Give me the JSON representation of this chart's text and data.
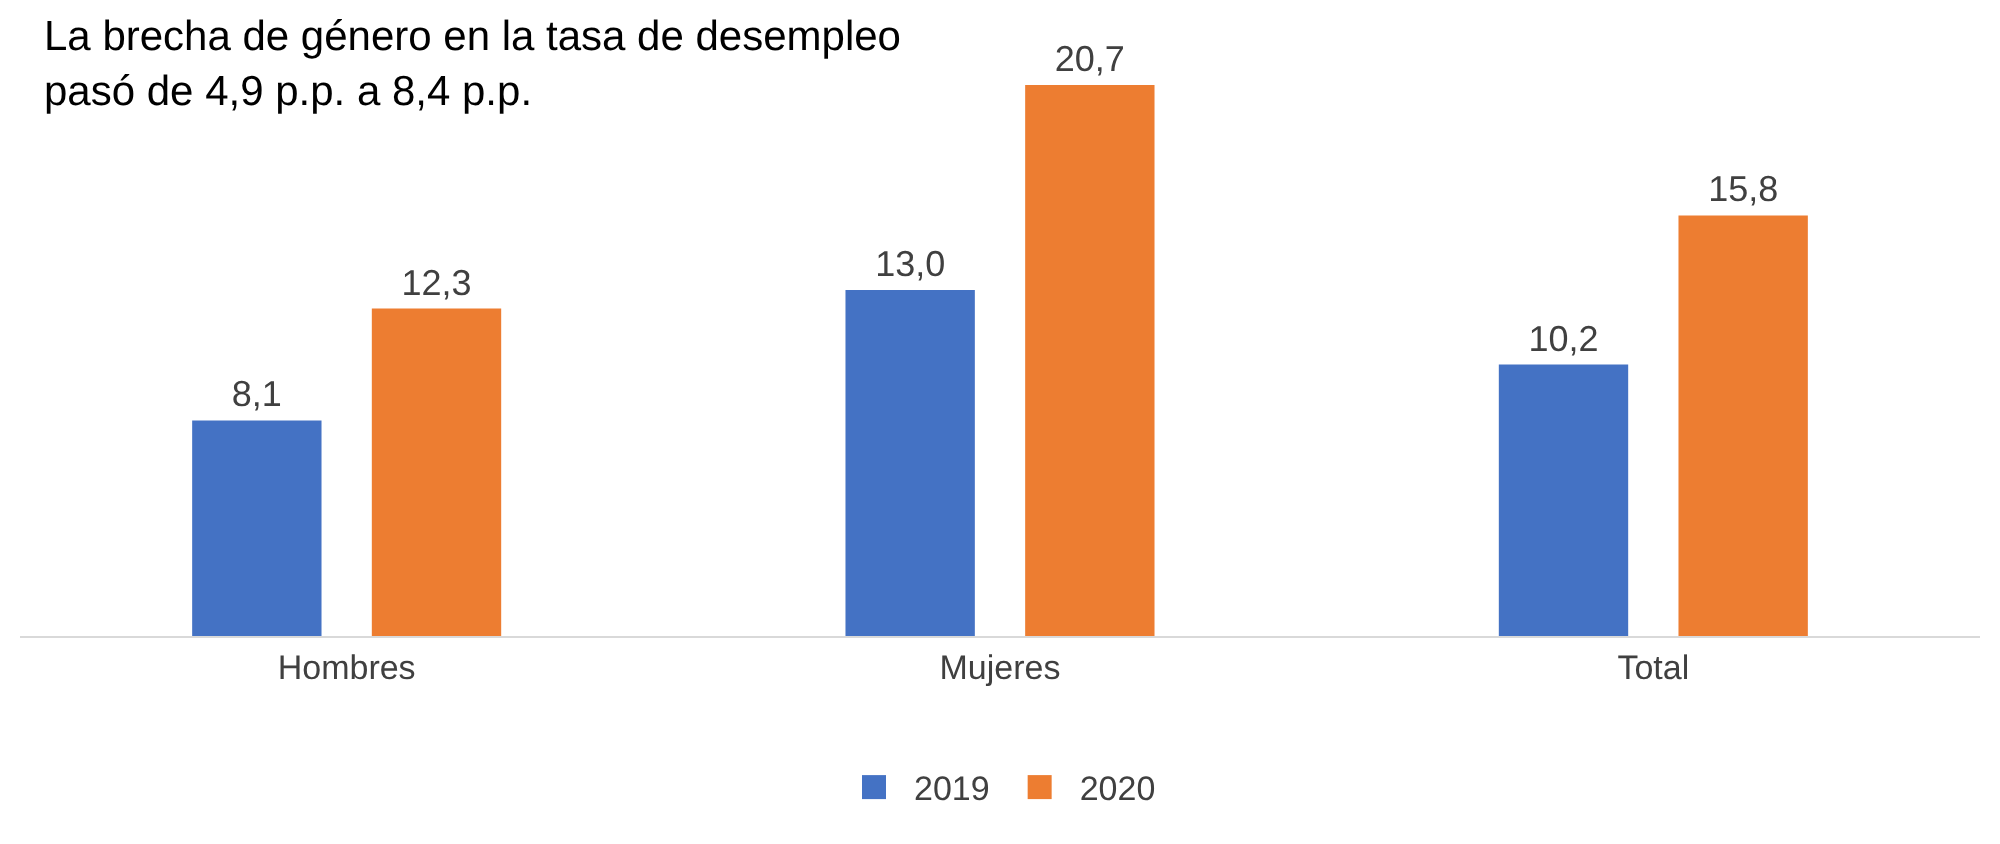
{
  "chart_data": {
    "type": "bar",
    "annotations": [
      "La brecha de género en la tasa de desempleo pasó de 4,9 p.p. a 8,4 p.p."
    ],
    "categories": [
      "Hombres",
      "Mujeres",
      "Total"
    ],
    "series": [
      {
        "name": "2019",
        "color": "#4472c4",
        "values": [
          8.1,
          13.0,
          10.2
        ],
        "value_labels": [
          "8,1",
          "13,0",
          "10,2"
        ]
      },
      {
        "name": "2020",
        "color": "#ed7d31",
        "values": [
          12.3,
          20.7,
          15.8
        ],
        "value_labels": [
          "12,3",
          "20,7",
          "15,8"
        ]
      }
    ],
    "tick_labels": "x",
    "grid": false,
    "legend": "bottom"
  }
}
